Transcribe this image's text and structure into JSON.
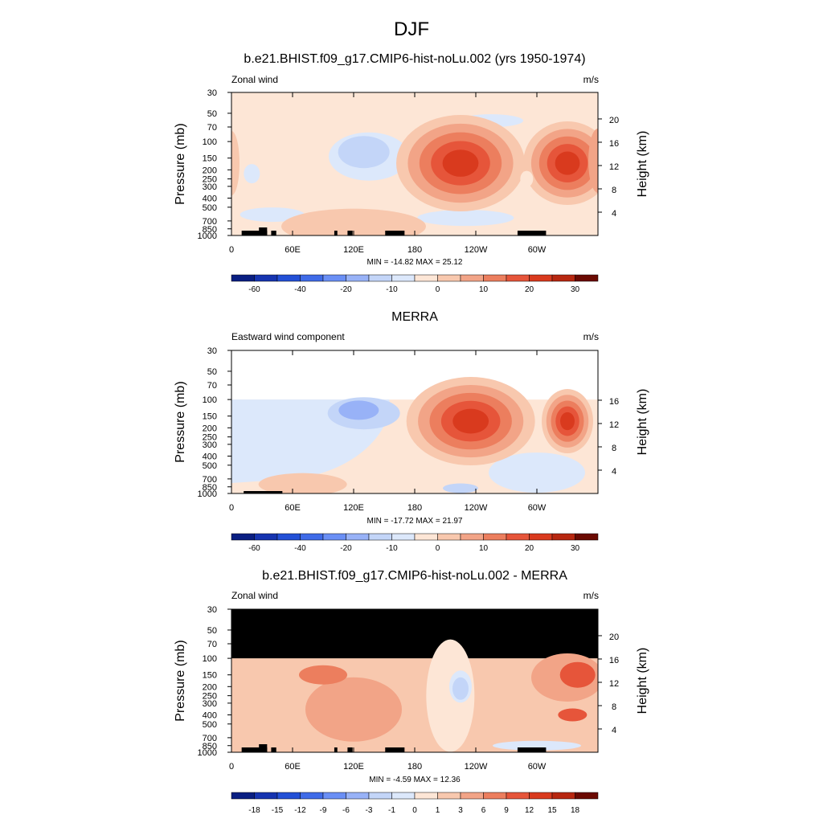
{
  "figure": {
    "title": "DJF"
  },
  "colors": {
    "blues": [
      "#0a1f82",
      "#1634b0",
      "#2350d6",
      "#3f6be8",
      "#6a8ff5",
      "#98b2f7",
      "#c3d5f8",
      "#dce8fb"
    ],
    "reds": [
      "#fde6d6",
      "#f8c8ae",
      "#f2a487",
      "#ec7e5e",
      "#e6553a",
      "#d93a1e",
      "#b72710",
      "#8f1708",
      "#6b0a02"
    ],
    "neutral": "#fde9dc"
  },
  "chart_data": [
    {
      "type": "heatmap",
      "title": "b.e21.BHIST.f09_g17.CMIP6-hist-noLu.002 (yrs 1950-1974)",
      "left_label": "Zonal wind",
      "units": "m/s",
      "ylabel": "Pressure (mb)",
      "ylabel_right": "Height (km)",
      "x_ticks": [
        "0",
        "60E",
        "120E",
        "180",
        "120W",
        "60W"
      ],
      "y_ticks": [
        "30",
        "50",
        "70",
        "100",
        "150",
        "200",
        "250",
        "300",
        "400",
        "500",
        "700",
        "850",
        "1000"
      ],
      "y_right_ticks": [
        "4",
        "8",
        "12",
        "16",
        "20"
      ],
      "stats": "MIN = -14.82  MAX =  25.12",
      "colorbar_labels": [
        "-60",
        "-40",
        "-20",
        "-10",
        "0",
        "10",
        "20",
        "30"
      ],
      "min": -14.82,
      "max": 25.12,
      "features": [
        {
          "name": "westerly jet east pacific",
          "lon": 225,
          "p": 180,
          "value": 25
        },
        {
          "name": "westerly jet atlantic",
          "lon": 330,
          "p": 170,
          "value": 20
        },
        {
          "name": "easterly core west pacific",
          "lon": 130,
          "p": 140,
          "value": -10
        }
      ]
    },
    {
      "type": "heatmap",
      "title": "MERRA",
      "left_label": "Eastward wind component",
      "units": "m/s",
      "ylabel": "Pressure (mb)",
      "ylabel_right": "Height (km)",
      "x_ticks": [
        "0",
        "60E",
        "120E",
        "180",
        "120W",
        "60W"
      ],
      "y_ticks": [
        "30",
        "50",
        "70",
        "100",
        "150",
        "200",
        "250",
        "300",
        "400",
        "500",
        "700",
        "850",
        "1000"
      ],
      "y_right_ticks": [
        "4",
        "8",
        "12",
        "16"
      ],
      "stats": "MIN = -17.72  MAX =  21.97",
      "colorbar_labels": [
        "-60",
        "-40",
        "-20",
        "-10",
        "0",
        "10",
        "20",
        "30"
      ],
      "min": -17.72,
      "max": 21.97,
      "features": [
        {
          "name": "westerly jet east pacific",
          "lon": 235,
          "p": 170,
          "value": 22
        },
        {
          "name": "westerly jet atlantic",
          "lon": 325,
          "p": 170,
          "value": 14
        },
        {
          "name": "easterly core west pacific",
          "lon": 120,
          "p": 140,
          "value": -17
        }
      ]
    },
    {
      "type": "heatmap",
      "title": "b.e21.BHIST.f09_g17.CMIP6-hist-noLu.002 - MERRA",
      "left_label": "Zonal wind",
      "units": "m/s",
      "ylabel": "Pressure (mb)",
      "ylabel_right": "Height (km)",
      "x_ticks": [
        "0",
        "60E",
        "120E",
        "180",
        "120W",
        "60W"
      ],
      "y_ticks": [
        "30",
        "50",
        "70",
        "100",
        "150",
        "200",
        "250",
        "300",
        "400",
        "500",
        "700",
        "850",
        "1000"
      ],
      "y_right_ticks": [
        "4",
        "8",
        "12",
        "16",
        "20"
      ],
      "stats": "MIN =  -4.59  MAX =  12.36",
      "colorbar_labels": [
        "-18",
        "-15",
        "-12",
        "-9",
        "-6",
        "-3",
        "-1",
        "0",
        "1",
        "3",
        "6",
        "9",
        "12",
        "15",
        "18"
      ],
      "min": -4.59,
      "max": 12.36
    }
  ]
}
